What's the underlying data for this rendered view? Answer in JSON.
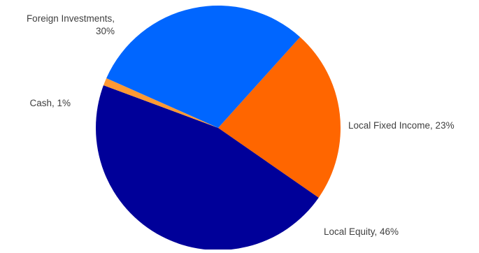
{
  "chart_data": {
    "type": "pie",
    "title": "",
    "start_angle_deg": 42,
    "direction": "clockwise",
    "slices": [
      {
        "label": "Local Fixed Income",
        "value": 23,
        "display": "Local Fixed Income, 23%",
        "color": "#FF6600"
      },
      {
        "label": "Local Equity",
        "value": 46,
        "display": "Local Equity, 46%",
        "color": "#000099"
      },
      {
        "label": "Cash",
        "value": 1,
        "display": "Cash, 1%",
        "color": "#FF9933"
      },
      {
        "label": "Foreign Investments",
        "value": 30,
        "display": "Foreign Investments, 30%",
        "display_lines": [
          "Foreign Investments,",
          "30%"
        ],
        "color": "#0066FF"
      }
    ],
    "legend": "none",
    "data_labels": "outside"
  }
}
